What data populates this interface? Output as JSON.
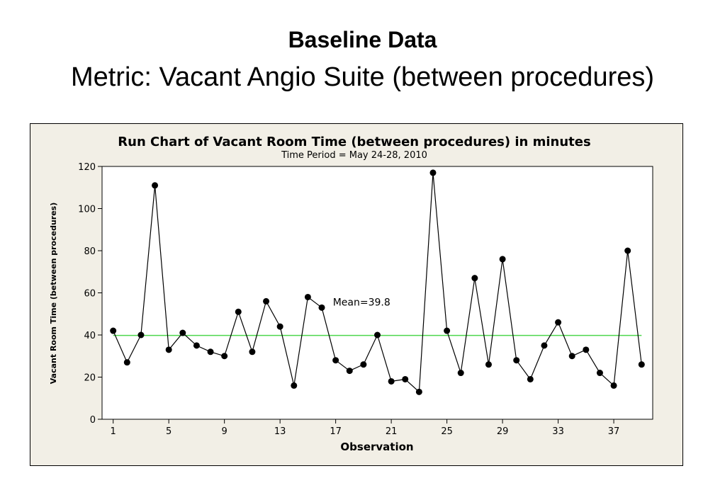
{
  "slide": {
    "title": "Baseline Data",
    "subtitle": "Metric: Vacant Angio Suite (between procedures)"
  },
  "colors": {
    "frame_bg": "#f2efe6",
    "plot_bg": "#ffffff",
    "series": "#000000",
    "mean_line": "#4cd64c"
  },
  "chart_data": {
    "type": "line",
    "title": "Run Chart of Vacant Room Time (between procedures) in minutes",
    "subtitle": "Time Period = May 24-28, 2010",
    "xlabel": "Observation",
    "ylabel": "Vacant Room Time (between procedures)",
    "xlim": [
      0.2,
      39.8
    ],
    "ylim": [
      0,
      120
    ],
    "xticks": [
      1,
      5,
      9,
      13,
      17,
      21,
      25,
      29,
      33,
      37
    ],
    "yticks": [
      0,
      20,
      40,
      60,
      80,
      100,
      120
    ],
    "mean": 39.8,
    "mean_label": "Mean=39.8",
    "grid": false,
    "series": [
      {
        "x": [
          1,
          2,
          3,
          4,
          5,
          6,
          7,
          8,
          9,
          10,
          11,
          12,
          13,
          14,
          15,
          16,
          17,
          18,
          19,
          20,
          21,
          22,
          23,
          24,
          25,
          26,
          27,
          28,
          29,
          30,
          31,
          32,
          33,
          34,
          35,
          36,
          37,
          38,
          39
        ],
        "values": [
          42,
          27,
          40,
          111,
          33,
          41,
          35,
          32,
          30,
          51,
          32,
          56,
          44,
          16,
          58,
          53,
          28,
          23,
          26,
          40,
          18,
          19,
          13,
          117,
          42,
          22,
          67,
          26,
          76,
          28,
          19,
          35,
          46,
          30,
          33,
          22,
          16,
          80,
          26
        ]
      }
    ]
  }
}
